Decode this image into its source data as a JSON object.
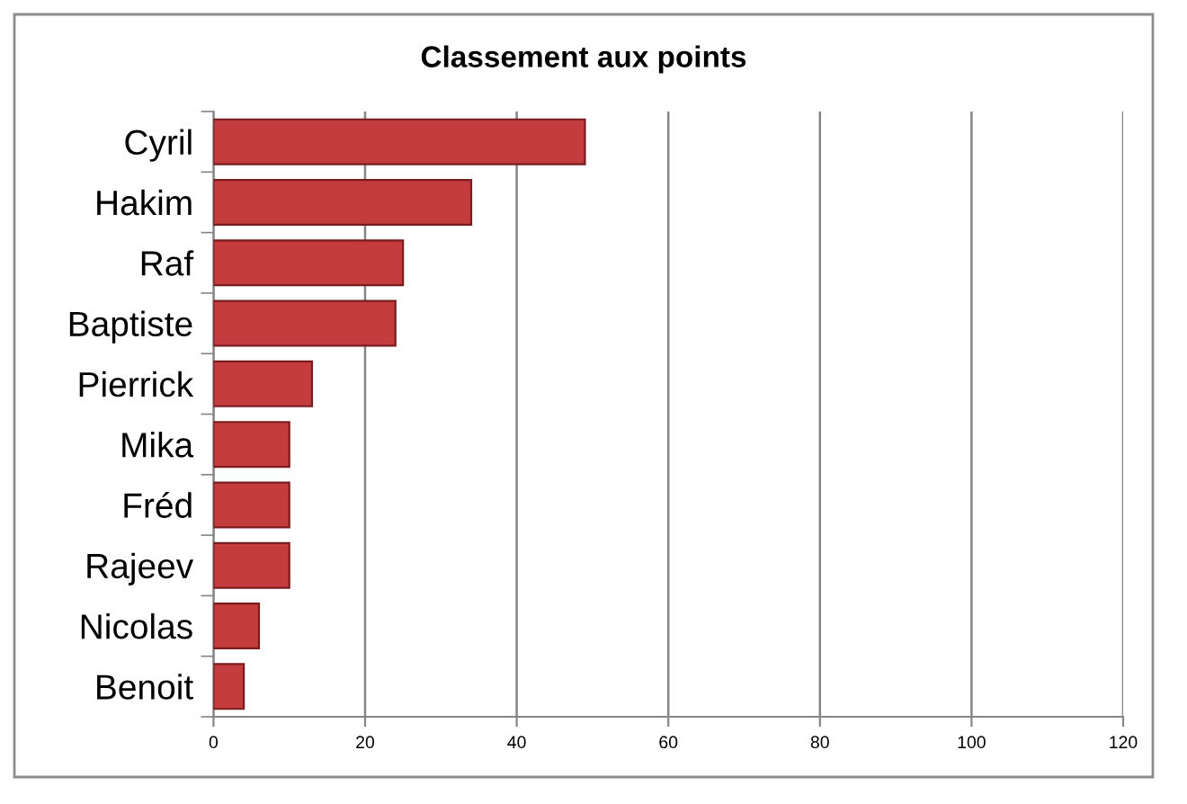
{
  "chart_data": {
    "type": "bar",
    "orientation": "horizontal",
    "title": "Classement aux points",
    "categories": [
      "Cyril",
      "Hakim",
      "Raf",
      "Baptiste",
      "Pierrick",
      "Mika",
      "Fréd",
      "Rajeev",
      "Nicolas",
      "Benoit"
    ],
    "values": [
      49,
      34,
      25,
      24,
      13,
      10,
      10,
      10,
      6,
      4
    ],
    "color": "#c43c3e",
    "xlim": [
      0,
      120
    ],
    "xticks": [
      0,
      20,
      40,
      60,
      80,
      100,
      120
    ],
    "grid": "x",
    "legend": false
  }
}
